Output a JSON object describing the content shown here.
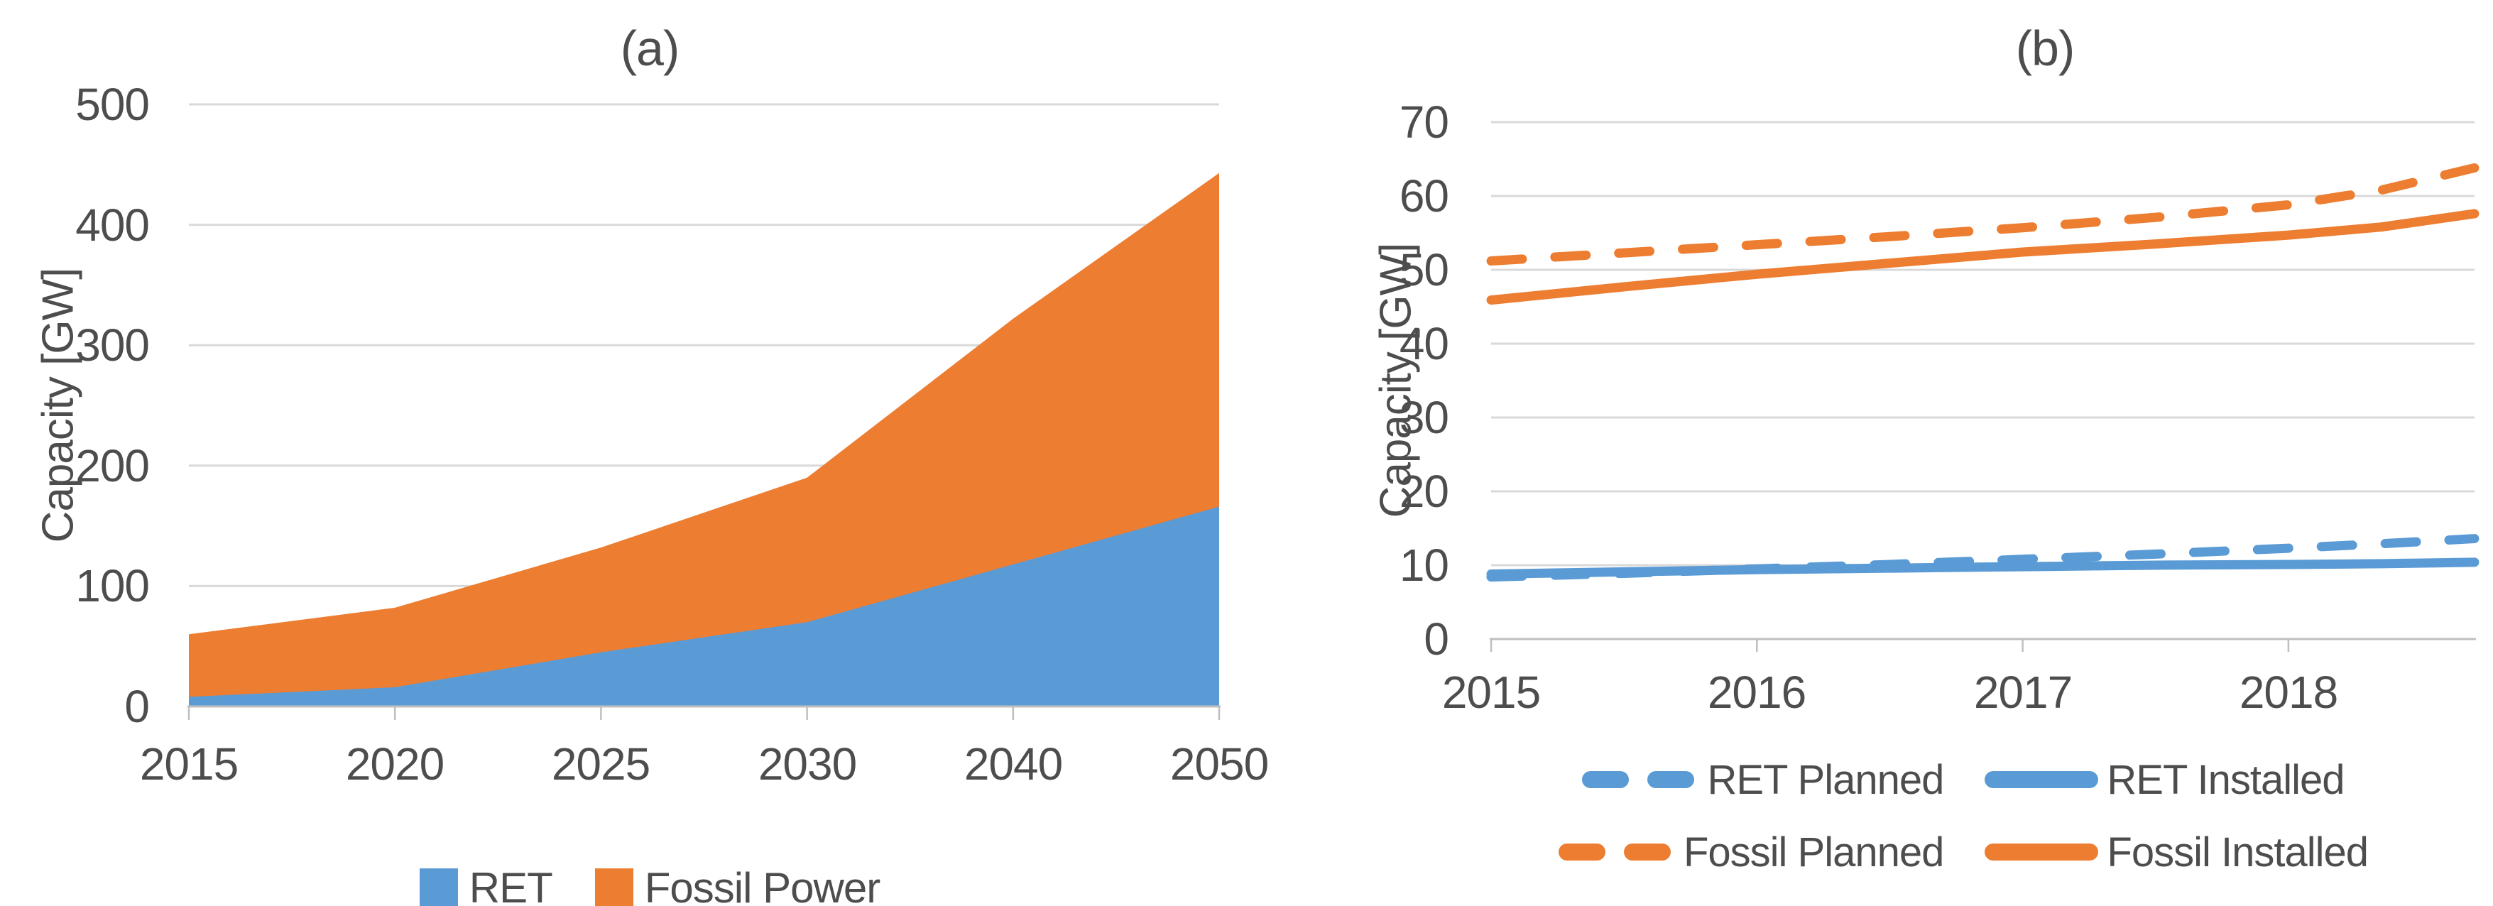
{
  "figure": {
    "background": "#FFFFFF",
    "text_color": "#4D4D4D",
    "gridline_color": "#D9D9D9",
    "axis_line_color": "#BFBFBF"
  },
  "chart_data": [
    {
      "type": "area",
      "stacked": true,
      "title": "(a)",
      "xlabel": "",
      "ylabel": "Capacity [GW]",
      "categories": [
        "2015",
        "2020",
        "2025",
        "2030",
        "2040",
        "2050"
      ],
      "series": [
        {
          "name": "RET",
          "color": "#5B9BD5",
          "values": [
            8,
            16,
            45,
            70,
            118,
            166
          ]
        },
        {
          "name": "Fossil Power",
          "color": "#ED7D31",
          "values": [
            52,
            66,
            87,
            120,
            204,
            277
          ]
        }
      ],
      "stacked_totals": [
        60,
        82,
        132,
        190,
        322,
        443
      ],
      "ylim": [
        0,
        500
      ],
      "y_tick_labels": [
        "500",
        "400",
        "300",
        "200",
        "100",
        "0"
      ],
      "grid_values": [
        100,
        200,
        300,
        400,
        500
      ],
      "grid": true,
      "legend_position": "bottom"
    },
    {
      "type": "line",
      "title": "(b)",
      "xlabel": "",
      "ylabel": "Capacity [GW]",
      "x": [
        2015,
        2015.5,
        2016,
        2016.5,
        2017,
        2017.5,
        2018,
        2018.35,
        2018.7
      ],
      "x_tick_labels": [
        "2015",
        "2016",
        "2017",
        "2018"
      ],
      "x_tick_years": [
        2015,
        2016,
        2017,
        2018
      ],
      "xlim": [
        2015,
        2018.7
      ],
      "series": [
        {
          "name": "RET Planned",
          "color": "#5B9BD5",
          "dashed": true,
          "values": [
            8.4,
            8.9,
            9.5,
            10.1,
            10.8,
            11.5,
            12.3,
            12.9,
            13.6
          ]
        },
        {
          "name": "RET Installed",
          "color": "#5B9BD5",
          "dashed": false,
          "values": [
            8.8,
            9.1,
            9.4,
            9.6,
            9.8,
            10.0,
            10.1,
            10.2,
            10.4
          ]
        },
        {
          "name": "Fossil Planned",
          "color": "#ED7D31",
          "dashed": true,
          "values": [
            51.2,
            52.3,
            53.4,
            54.5,
            55.7,
            57.1,
            58.8,
            60.8,
            63.8
          ]
        },
        {
          "name": "Fossil Installed",
          "color": "#ED7D31",
          "dashed": false,
          "values": [
            45.9,
            47.7,
            49.4,
            50.9,
            52.4,
            53.5,
            54.7,
            55.8,
            57.6
          ]
        }
      ],
      "ylim": [
        0,
        70
      ],
      "y_tick_labels": [
        "70",
        "60",
        "50",
        "40",
        "30",
        "20",
        "10",
        "0"
      ],
      "grid_values": [
        10,
        20,
        30,
        40,
        50,
        60,
        70
      ],
      "grid": true,
      "legend_position": "bottom"
    }
  ]
}
